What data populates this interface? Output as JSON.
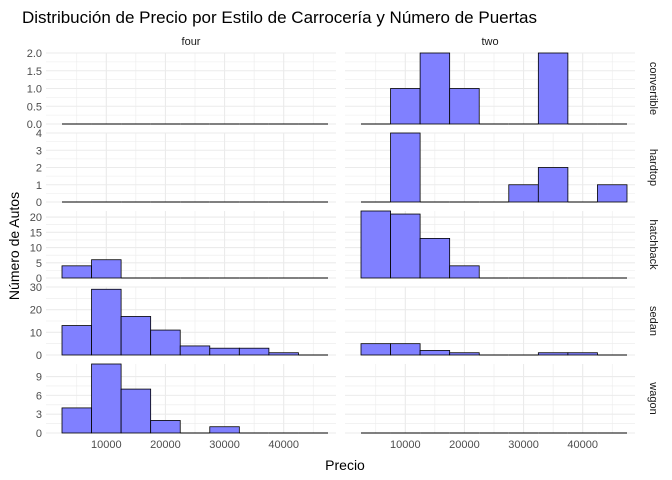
{
  "chart_data": {
    "type": "histogram",
    "title": "Distribución de Precio por Estilo de Carrocería y Número de Puertas",
    "xlabel": "Precio",
    "ylabel": "Número de Autos",
    "bin_width": 5000,
    "bin_centers": [
      5000,
      10000,
      15000,
      20000,
      25000,
      30000,
      35000,
      40000,
      45000
    ],
    "xlim": [
      2500,
      47500
    ],
    "x_ticks": [
      10000,
      20000,
      30000,
      40000
    ],
    "col_facets": [
      "four",
      "two"
    ],
    "row_facets": [
      "convertible",
      "hardtop",
      "hatchback",
      "sedan",
      "wagon"
    ],
    "colors": {
      "fill": "#8080ff",
      "bar_edge": "#000000",
      "grid": "#ebebeb"
    },
    "grid": true,
    "panels": [
      {
        "row": "convertible",
        "col": "four",
        "counts": [
          0,
          0,
          0,
          0,
          0,
          0,
          0,
          0,
          0
        ]
      },
      {
        "row": "convertible",
        "col": "two",
        "counts": [
          0,
          1,
          2,
          1,
          0,
          0,
          2,
          0,
          0
        ]
      },
      {
        "row": "hardtop",
        "col": "four",
        "counts": [
          0,
          0,
          0,
          0,
          0,
          0,
          0,
          0,
          0
        ]
      },
      {
        "row": "hardtop",
        "col": "two",
        "counts": [
          0,
          4,
          0,
          0,
          0,
          1,
          2,
          0,
          1
        ]
      },
      {
        "row": "hatchback",
        "col": "four",
        "counts": [
          4,
          6,
          0,
          0,
          0,
          0,
          0,
          0,
          0
        ]
      },
      {
        "row": "hatchback",
        "col": "two",
        "counts": [
          22,
          21,
          13,
          4,
          0,
          0,
          0,
          0,
          0
        ]
      },
      {
        "row": "sedan",
        "col": "four",
        "counts": [
          13,
          29,
          17,
          11,
          4,
          3,
          3,
          1,
          0
        ]
      },
      {
        "row": "sedan",
        "col": "two",
        "counts": [
          5,
          5,
          2,
          1,
          0,
          0,
          1,
          1,
          0
        ]
      },
      {
        "row": "wagon",
        "col": "four",
        "counts": [
          4,
          11,
          7,
          2,
          0,
          1,
          0,
          0,
          0
        ]
      },
      {
        "row": "wagon",
        "col": "two",
        "counts": [
          0,
          0,
          0,
          0,
          0,
          0,
          0,
          0,
          0
        ]
      }
    ],
    "row_y_ticks": [
      [
        0.0,
        0.5,
        1.0,
        1.5,
        2.0
      ],
      [
        0,
        1,
        2,
        3,
        4
      ],
      [
        0,
        5,
        10,
        15,
        20
      ],
      [
        0,
        10,
        20,
        30
      ],
      [
        0,
        3,
        6,
        9
      ]
    ],
    "row_y_tick_labels": [
      [
        "0.0",
        "0.5",
        "1.0",
        "1.5",
        "2.0"
      ],
      [
        "0",
        "1",
        "2",
        "3",
        "4"
      ],
      [
        "0",
        "5",
        "10",
        "15",
        "20"
      ],
      [
        "0",
        "10",
        "20",
        "30"
      ],
      [
        "0",
        "3",
        "6",
        "9"
      ]
    ],
    "row_ylim": [
      [
        0,
        2.0
      ],
      [
        0,
        4
      ],
      [
        0,
        22
      ],
      [
        0,
        30
      ],
      [
        0,
        11
      ]
    ],
    "x_tick_labels": [
      "10000",
      "20000",
      "30000",
      "40000"
    ]
  }
}
